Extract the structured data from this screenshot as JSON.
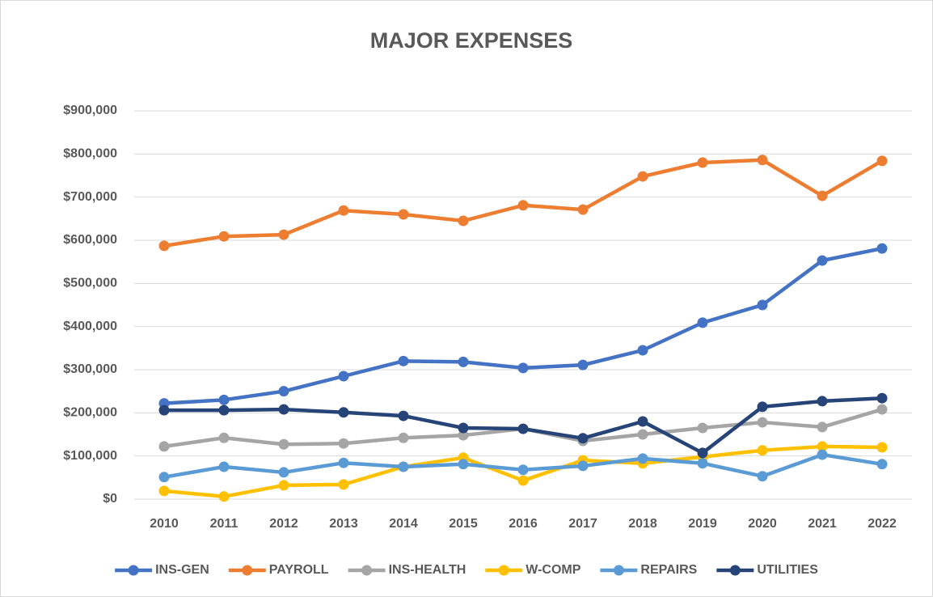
{
  "chart_data": {
    "type": "line",
    "title": "MAJOR EXPENSES",
    "categories": [
      "2010",
      "2011",
      "2012",
      "2013",
      "2014",
      "2015",
      "2016",
      "2017",
      "2018",
      "2019",
      "2020",
      "2021",
      "2022"
    ],
    "series": [
      {
        "name": "INS-GEN",
        "color": "#4472c4",
        "values": [
          222000,
          230000,
          250000,
          285000,
          320000,
          318000,
          304000,
          311000,
          345000,
          409000,
          450000,
          553000,
          581000
        ]
      },
      {
        "name": "PAYROLL",
        "color": "#ed7d31",
        "values": [
          587000,
          609000,
          613000,
          669000,
          660000,
          645000,
          681000,
          671000,
          748000,
          780000,
          786000,
          703000,
          784000
        ]
      },
      {
        "name": "INS-HEALTH",
        "color": "#a5a5a5",
        "values": [
          122000,
          142000,
          127000,
          129000,
          142000,
          148000,
          163000,
          135000,
          150000,
          165000,
          178000,
          167000,
          208000
        ]
      },
      {
        "name": "W-COMP",
        "color": "#ffc000",
        "values": [
          19000,
          6000,
          32000,
          34000,
          75000,
          96000,
          43000,
          90000,
          83000,
          98000,
          113000,
          122000,
          120000
        ]
      },
      {
        "name": "REPAIRS",
        "color": "#5b9bd5",
        "values": [
          51000,
          75000,
          62000,
          84000,
          75000,
          81000,
          68000,
          77000,
          94000,
          83000,
          53000,
          103000,
          81000
        ]
      },
      {
        "name": "UTILITIES",
        "color": "#264478",
        "values": [
          206000,
          206000,
          208000,
          201000,
          193000,
          165000,
          163000,
          141000,
          180000,
          107000,
          214000,
          227000,
          234000
        ]
      }
    ],
    "ylim": [
      0,
      900000
    ],
    "yticks": [
      {
        "value": 0,
        "label": "$0"
      },
      {
        "value": 100000,
        "label": "$100,000"
      },
      {
        "value": 200000,
        "label": "$200,000"
      },
      {
        "value": 300000,
        "label": "$300,000"
      },
      {
        "value": 400000,
        "label": "$400,000"
      },
      {
        "value": 500000,
        "label": "$500,000"
      },
      {
        "value": 600000,
        "label": "$600,000"
      },
      {
        "value": 700000,
        "label": "$700,000"
      },
      {
        "value": 800000,
        "label": "$800,000"
      },
      {
        "value": 900000,
        "label": "$900,000"
      }
    ],
    "grid": true,
    "legend": "bottom"
  }
}
